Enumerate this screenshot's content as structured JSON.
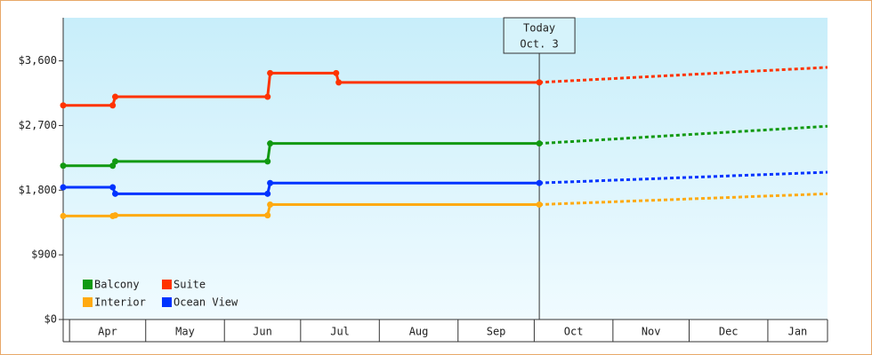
{
  "chart_data": {
    "type": "line",
    "xlim": [
      -2.5,
      298.5
    ],
    "xticks": [
      {
        "value": 0,
        "label": "Apr"
      },
      {
        "value": 30,
        "label": "May"
      },
      {
        "value": 61,
        "label": "Jun"
      },
      {
        "value": 91,
        "label": "Jul"
      },
      {
        "value": 122,
        "label": "Aug"
      },
      {
        "value": 153,
        "label": "Sep"
      },
      {
        "value": 183,
        "label": "Oct"
      },
      {
        "value": 214,
        "label": "Nov"
      },
      {
        "value": 244,
        "label": "Dec"
      },
      {
        "value": 275,
        "label": "Jan"
      }
    ],
    "ylim": [
      0,
      4200
    ],
    "yticks": [
      {
        "value": 0,
        "label": "$0"
      },
      {
        "value": 900,
        "label": "$900"
      },
      {
        "value": 1800,
        "label": "$1,800"
      },
      {
        "value": 2700,
        "label": "$2,700"
      },
      {
        "value": 3600,
        "label": "$3,600"
      }
    ],
    "today": {
      "x": 185,
      "label": [
        "Today",
        "Oct. 3"
      ]
    },
    "legend": "bottom-left",
    "series": [
      {
        "name": "Balcony",
        "color": "#119911",
        "x": [
          -2.5,
          17,
          18,
          78,
          79,
          185
        ],
        "values": [
          2140,
          2140,
          2200,
          2200,
          2450,
          2450
        ],
        "forecast": {
          "x": [
            298.5
          ],
          "values": [
            2690
          ]
        }
      },
      {
        "name": "Suite",
        "color": "#ff3300",
        "x": [
          -2.5,
          17,
          18,
          78,
          79,
          105,
          106,
          185
        ],
        "values": [
          2980,
          2980,
          3100,
          3100,
          3430,
          3430,
          3300,
          3300
        ],
        "forecast": {
          "x": [
            298.5
          ],
          "values": [
            3510
          ]
        }
      },
      {
        "name": "Interior",
        "color": "#ffaa11",
        "x": [
          -2.5,
          17,
          18,
          78,
          79,
          185
        ],
        "values": [
          1440,
          1440,
          1450,
          1450,
          1600,
          1600
        ],
        "forecast": {
          "x": [
            298.5
          ],
          "values": [
            1750
          ]
        }
      },
      {
        "name": "Ocean View",
        "color": "#0033ff",
        "x": [
          -2.5,
          17,
          18,
          78,
          79,
          185
        ],
        "values": [
          1840,
          1840,
          1750,
          1750,
          1900,
          1900
        ],
        "forecast": {
          "x": [
            298.5
          ],
          "values": [
            2050
          ]
        }
      }
    ]
  }
}
